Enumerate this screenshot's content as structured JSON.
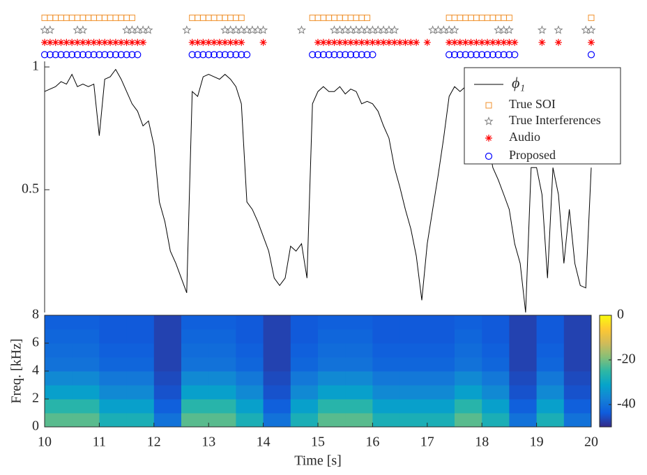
{
  "chart_data": [
    {
      "type": "line",
      "xlim": [
        10,
        20
      ],
      "ylim": [
        0,
        1.25
      ],
      "yticks": [
        0.5,
        1
      ],
      "legend": "upper right",
      "series": [
        {
          "name": "ϕ₁",
          "color": "#000000",
          "marker": "none",
          "x": [
            10,
            10.1,
            10.2,
            10.3,
            10.4,
            10.5,
            10.6,
            10.7,
            10.8,
            10.9,
            11,
            11.1,
            11.2,
            11.3,
            11.4,
            11.5,
            11.6,
            11.7,
            11.8,
            11.9,
            12,
            12.1,
            12.2,
            12.3,
            12.4,
            12.5,
            12.6,
            12.7,
            12.8,
            12.9,
            13,
            13.1,
            13.2,
            13.3,
            13.4,
            13.5,
            13.6,
            13.7,
            13.8,
            13.9,
            14,
            14.1,
            14.2,
            14.3,
            14.4,
            14.5,
            14.6,
            14.7,
            14.8,
            14.9,
            15,
            15.1,
            15.2,
            15.3,
            15.4,
            15.5,
            15.6,
            15.7,
            15.8,
            15.9,
            16,
            16.1,
            16.2,
            16.3,
            16.4,
            16.5,
            16.6,
            16.7,
            16.8,
            16.9,
            17,
            17.1,
            17.2,
            17.3,
            17.4,
            17.5,
            17.6,
            17.7,
            17.8,
            17.9,
            18,
            18.1,
            18.2,
            18.3,
            18.4,
            18.5,
            18.6,
            18.7,
            18.8,
            18.9,
            19,
            19.1,
            19.2,
            19.3,
            19.4,
            19.5,
            19.6,
            19.7,
            19.8,
            19.9,
            20
          ],
          "values": [
            0.9,
            0.91,
            0.92,
            0.94,
            0.93,
            0.97,
            0.92,
            0.93,
            0.92,
            0.93,
            0.72,
            0.95,
            0.96,
            0.99,
            0.95,
            0.9,
            0.85,
            0.82,
            0.76,
            0.78,
            0.68,
            0.45,
            0.37,
            0.25,
            0.2,
            0.14,
            0.08,
            0.9,
            0.88,
            0.96,
            0.97,
            0.96,
            0.95,
            0.97,
            0.95,
            0.92,
            0.85,
            0.45,
            0.42,
            0.37,
            0.31,
            0.25,
            0.14,
            0.11,
            0.14,
            0.27,
            0.25,
            0.28,
            0.14,
            0.85,
            0.9,
            0.92,
            0.9,
            0.9,
            0.92,
            0.89,
            0.91,
            0.9,
            0.85,
            0.86,
            0.85,
            0.82,
            0.76,
            0.71,
            0.59,
            0.51,
            0.42,
            0.34,
            0.23,
            0.05,
            0.28,
            0.42,
            0.56,
            0.71,
            0.88,
            0.92,
            0.9,
            0.92,
            0.9,
            0.88,
            0.82,
            0.71,
            0.59,
            0.54,
            0.48,
            0.42,
            0.28,
            0.2,
            0,
            0.59,
            0.59,
            0.48,
            0.14,
            0.59,
            0.48,
            0.2,
            0.42,
            0.2,
            0.11,
            0.1,
            0.59
          ]
        },
        {
          "name": "True SOI",
          "color": "#f0912c",
          "marker": "square",
          "x": [
            10,
            10.1,
            10.2,
            10.3,
            10.4,
            10.5,
            10.6,
            10.7,
            10.8,
            10.9,
            11,
            11.1,
            11.2,
            11.3,
            11.4,
            11.5,
            11.6,
            12.7,
            12.8,
            12.9,
            13,
            13.1,
            13.2,
            13.3,
            13.4,
            13.5,
            13.6,
            14.9,
            15,
            15.1,
            15.2,
            15.3,
            15.4,
            15.5,
            15.6,
            15.7,
            15.8,
            15.9,
            17.4,
            17.5,
            17.6,
            17.7,
            17.8,
            17.9,
            18,
            18.1,
            18.2,
            18.3,
            18.4,
            18.5,
            20
          ],
          "values": [
            1.2,
            1.2,
            1.2,
            1.2,
            1.2,
            1.2,
            1.2,
            1.2,
            1.2,
            1.2,
            1.2,
            1.2,
            1.2,
            1.2,
            1.2,
            1.2,
            1.2,
            1.2,
            1.2,
            1.2,
            1.2,
            1.2,
            1.2,
            1.2,
            1.2,
            1.2,
            1.2,
            1.2,
            1.2,
            1.2,
            1.2,
            1.2,
            1.2,
            1.2,
            1.2,
            1.2,
            1.2,
            1.2,
            1.2,
            1.2,
            1.2,
            1.2,
            1.2,
            1.2,
            1.2,
            1.2,
            1.2,
            1.2,
            1.2,
            1.2,
            1.2
          ]
        },
        {
          "name": "True Interferences",
          "color": "#808080",
          "marker": "star",
          "x": [
            10,
            10.1,
            10.6,
            10.7,
            11.5,
            11.6,
            11.7,
            11.8,
            11.9,
            12.6,
            13.3,
            13.4,
            13.5,
            13.6,
            13.7,
            13.8,
            13.9,
            14,
            14.7,
            15.3,
            15.4,
            15.5,
            15.6,
            15.7,
            15.8,
            15.9,
            16,
            16.1,
            16.2,
            16.3,
            16.4,
            17.1,
            17.2,
            17.3,
            17.4,
            17.5,
            18.3,
            18.4,
            18.5,
            19.1,
            19.4,
            19.9,
            20
          ],
          "values": [
            1.15,
            1.15,
            1.15,
            1.15,
            1.15,
            1.15,
            1.15,
            1.15,
            1.15,
            1.15,
            1.15,
            1.15,
            1.15,
            1.15,
            1.15,
            1.15,
            1.15,
            1.15,
            1.15,
            1.15,
            1.15,
            1.15,
            1.15,
            1.15,
            1.15,
            1.15,
            1.15,
            1.15,
            1.15,
            1.15,
            1.15,
            1.15,
            1.15,
            1.15,
            1.15,
            1.15,
            1.15,
            1.15,
            1.15,
            1.15,
            1.15,
            1.15,
            1.15
          ]
        },
        {
          "name": "Audio",
          "color": "#ff0000",
          "marker": "asterisk",
          "x": [
            10,
            10.1,
            10.2,
            10.3,
            10.4,
            10.5,
            10.6,
            10.7,
            10.8,
            10.9,
            11,
            11.1,
            11.2,
            11.3,
            11.4,
            11.5,
            11.6,
            11.7,
            11.8,
            12.7,
            12.8,
            12.9,
            13,
            13.1,
            13.2,
            13.3,
            13.4,
            13.5,
            13.6,
            14,
            15,
            15.1,
            15.2,
            15.3,
            15.4,
            15.5,
            15.6,
            15.7,
            15.8,
            15.9,
            16,
            16.1,
            16.2,
            16.3,
            16.4,
            16.5,
            16.6,
            16.7,
            16.8,
            17,
            17.4,
            17.5,
            17.6,
            17.7,
            17.8,
            17.9,
            18,
            18.1,
            18.2,
            18.3,
            18.4,
            18.5,
            18.6,
            19.1,
            19.4,
            20
          ],
          "values": [
            1.1,
            1.1,
            1.1,
            1.1,
            1.1,
            1.1,
            1.1,
            1.1,
            1.1,
            1.1,
            1.1,
            1.1,
            1.1,
            1.1,
            1.1,
            1.1,
            1.1,
            1.1,
            1.1,
            1.1,
            1.1,
            1.1,
            1.1,
            1.1,
            1.1,
            1.1,
            1.1,
            1.1,
            1.1,
            1.1,
            1.1,
            1.1,
            1.1,
            1.1,
            1.1,
            1.1,
            1.1,
            1.1,
            1.1,
            1.1,
            1.1,
            1.1,
            1.1,
            1.1,
            1.1,
            1.1,
            1.1,
            1.1,
            1.1,
            1.1,
            1.1,
            1.1,
            1.1,
            1.1,
            1.1,
            1.1,
            1.1,
            1.1,
            1.1,
            1.1,
            1.1,
            1.1,
            1.1,
            1.1,
            1.1,
            1.1
          ]
        },
        {
          "name": "Proposed",
          "color": "#0000ff",
          "marker": "circle",
          "x": [
            10,
            10.1,
            10.2,
            10.3,
            10.4,
            10.5,
            10.6,
            10.7,
            10.8,
            10.9,
            11,
            11.1,
            11.2,
            11.3,
            11.4,
            11.5,
            11.6,
            11.7,
            12.7,
            12.8,
            12.9,
            13,
            13.1,
            13.2,
            13.3,
            13.4,
            13.5,
            13.6,
            13.7,
            14.9,
            15,
            15.1,
            15.2,
            15.3,
            15.4,
            15.5,
            15.6,
            15.7,
            15.8,
            15.9,
            16,
            17.4,
            17.5,
            17.6,
            17.7,
            17.8,
            17.9,
            18,
            18.1,
            18.2,
            18.3,
            18.4,
            18.5,
            18.6,
            20
          ],
          "values": [
            1.05,
            1.05,
            1.05,
            1.05,
            1.05,
            1.05,
            1.05,
            1.05,
            1.05,
            1.05,
            1.05,
            1.05,
            1.05,
            1.05,
            1.05,
            1.05,
            1.05,
            1.05,
            1.05,
            1.05,
            1.05,
            1.05,
            1.05,
            1.05,
            1.05,
            1.05,
            1.05,
            1.05,
            1.05,
            1.05,
            1.05,
            1.05,
            1.05,
            1.05,
            1.05,
            1.05,
            1.05,
            1.05,
            1.05,
            1.05,
            1.05,
            1.05,
            1.05,
            1.05,
            1.05,
            1.05,
            1.05,
            1.05,
            1.05,
            1.05,
            1.05,
            1.05,
            1.05,
            1.05,
            1.05
          ]
        }
      ]
    },
    {
      "type": "heatmap",
      "xlabel": "Time [s]",
      "ylabel": "Freq. [kHz]",
      "xlim": [
        10,
        20
      ],
      "xticks": [
        10,
        11,
        12,
        13,
        14,
        15,
        16,
        17,
        18,
        19,
        20
      ],
      "ylim": [
        0,
        8
      ],
      "yticks": [
        0,
        2,
        4,
        6,
        8
      ],
      "clim": [
        -50,
        0
      ],
      "cticks": [
        0,
        -20,
        -40
      ],
      "colormap": [
        "#352a87",
        "#0f5cdd",
        "#1481d6",
        "#06a4ca",
        "#2eb7a4",
        "#87bf77",
        "#d1bb59",
        "#fec832",
        "#f9fb0e"
      ],
      "x": [
        10.25,
        10.75,
        11.25,
        11.75,
        12.25,
        12.75,
        13.25,
        13.75,
        14.25,
        14.75,
        15.25,
        15.75,
        16.25,
        16.75,
        17.25,
        17.75,
        18.25,
        18.75,
        19.25,
        19.75
      ],
      "y": [
        0.5,
        1.5,
        2.5,
        3.5,
        4.5,
        5.5,
        6.5,
        7.5
      ],
      "z": [
        [
          -22,
          -22,
          -28,
          -28,
          -40,
          -22,
          -22,
          -28,
          -40,
          -28,
          -22,
          -22,
          -28,
          -28,
          -28,
          -22,
          -28,
          -40,
          -28,
          -40
        ],
        [
          -26,
          -26,
          -32,
          -32,
          -43,
          -26,
          -26,
          -32,
          -43,
          -32,
          -26,
          -26,
          -32,
          -32,
          -32,
          -26,
          -32,
          -43,
          -32,
          -43
        ],
        [
          -32,
          -32,
          -36,
          -36,
          -45,
          -32,
          -32,
          -36,
          -45,
          -36,
          -32,
          -32,
          -36,
          -36,
          -36,
          -32,
          -36,
          -45,
          -36,
          -45
        ],
        [
          -36,
          -36,
          -39,
          -39,
          -46,
          -36,
          -36,
          -39,
          -46,
          -39,
          -36,
          -36,
          -39,
          -39,
          -39,
          -36,
          -39,
          -46,
          -39,
          -46
        ],
        [
          -40,
          -40,
          -42,
          -42,
          -47,
          -40,
          -40,
          -42,
          -47,
          -42,
          -40,
          -40,
          -42,
          -42,
          -42,
          -40,
          -42,
          -47,
          -42,
          -47
        ],
        [
          -41,
          -41,
          -43,
          -43,
          -47,
          -41,
          -41,
          -43,
          -47,
          -43,
          -41,
          -41,
          -43,
          -43,
          -43,
          -41,
          -43,
          -47,
          -43,
          -47
        ],
        [
          -42,
          -42,
          -44,
          -44,
          -47,
          -42,
          -42,
          -44,
          -47,
          -44,
          -42,
          -42,
          -44,
          -44,
          -44,
          -42,
          -44,
          -47,
          -44,
          -47
        ],
        [
          -43,
          -43,
          -44,
          -44,
          -47,
          -43,
          -43,
          -44,
          -47,
          -44,
          -43,
          -43,
          -44,
          -44,
          -44,
          -43,
          -44,
          -47,
          -44,
          -47
        ]
      ]
    }
  ]
}
